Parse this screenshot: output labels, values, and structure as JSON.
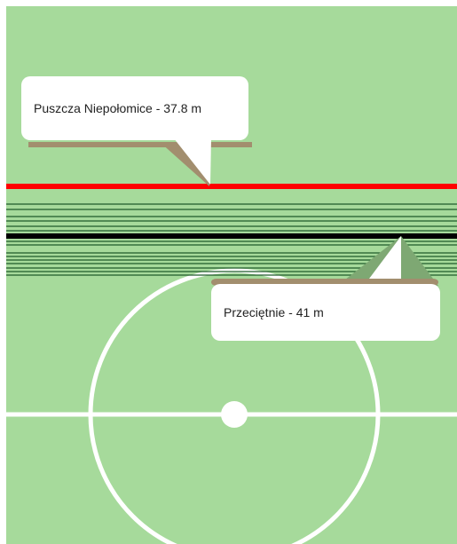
{
  "club_line": {
    "label": "Puszcza Niepołomice - 37.8 m",
    "value_m": 37.8,
    "color": "#ff0000"
  },
  "average_line": {
    "label": "Przeciętnie - 41 m",
    "value_m": 41,
    "color": "#000000"
  },
  "colors": {
    "pitch": "#a6da9b",
    "pitch_lines": "#ffffff",
    "team_lines": "#1f5a2a",
    "tooltip_bg": "#ffffff",
    "tooltip_shadow": "#a28e6e"
  }
}
